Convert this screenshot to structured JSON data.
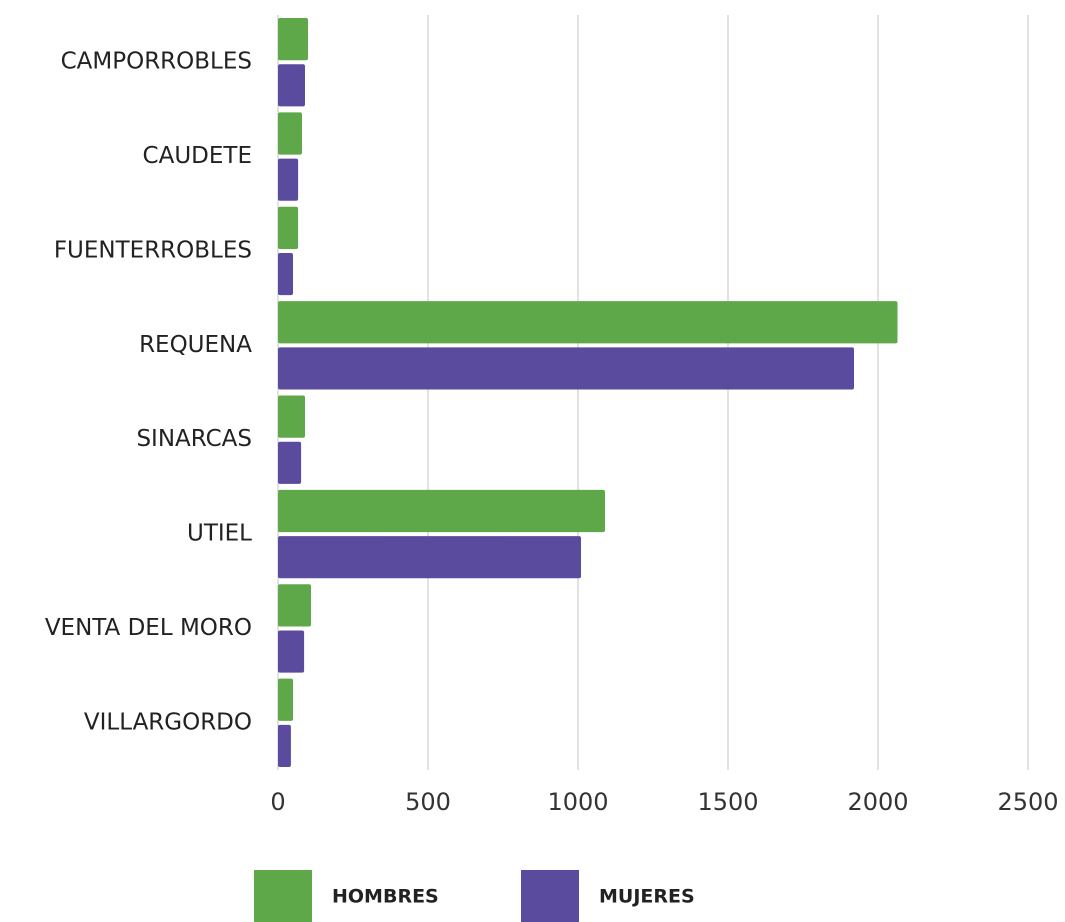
{
  "chart_data": {
    "type": "barh",
    "categories": [
      "CAMPORROBLES",
      "CAUDETE",
      "FUENTERROBLES",
      "REQUENA",
      "SINARCAS",
      "UTIEL",
      "VENTA DEL MORO",
      "VILLARGORDO"
    ],
    "series": [
      {
        "name": "HOMBRES",
        "color": "#5ea84a",
        "values": [
          100,
          80,
          67,
          2065,
          90,
          1090,
          110,
          50
        ]
      },
      {
        "name": "MUJERES",
        "color": "#5a4b9f",
        "values": [
          90,
          67,
          50,
          1920,
          77,
          1010,
          87,
          43
        ]
      }
    ],
    "xlim": [
      0,
      2500
    ],
    "xticks": [
      0,
      500,
      1000,
      1500,
      2000,
      2500
    ],
    "grid": true,
    "legend": "bottom"
  }
}
